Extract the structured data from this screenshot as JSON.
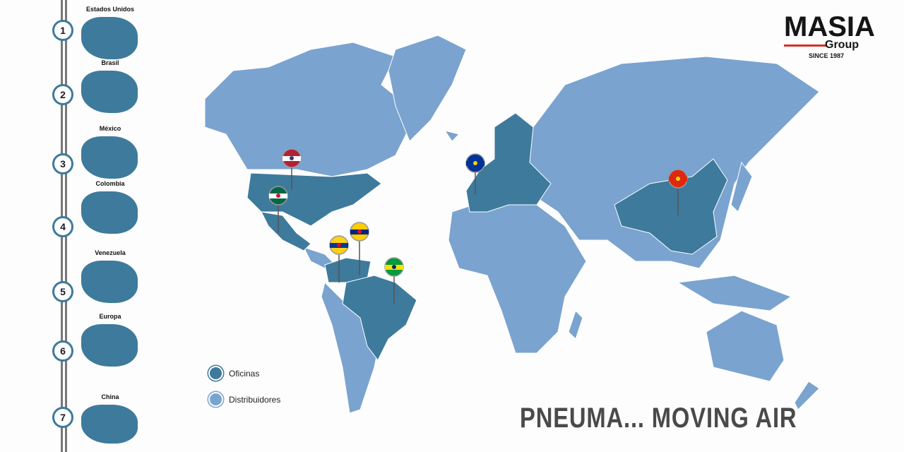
{
  "brand": {
    "name": "MASIA",
    "sub": "Group",
    "since": "SINCE 1987",
    "accent": "#d3302a"
  },
  "slogan": "PNEUMA... MOVING AIR",
  "colors": {
    "oficinas": "#3e7a9b",
    "distribuidores": "#7aa3cf"
  },
  "timeline": [
    {
      "n": "1",
      "label": "Estados Unidos"
    },
    {
      "n": "2",
      "label": "Brasil"
    },
    {
      "n": "3",
      "label": "México"
    },
    {
      "n": "4",
      "label": "Colombia"
    },
    {
      "n": "5",
      "label": "Venezuela"
    },
    {
      "n": "6",
      "label": "Europa"
    },
    {
      "n": "7",
      "label": "China"
    }
  ],
  "legend": {
    "offices": "Oficinas",
    "distributors": "Distribuidores"
  },
  "pins": [
    "usa-flag",
    "mexico-flag",
    "colombia-flag",
    "venezuela-flag",
    "brazil-flag",
    "eu-flag",
    "china-flag"
  ]
}
